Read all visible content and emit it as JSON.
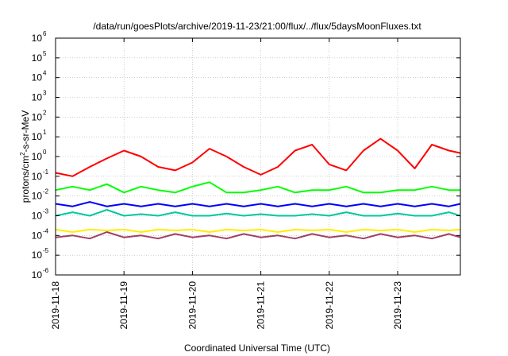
{
  "chart_data": {
    "type": "line",
    "title": "/data/run/goesPlots/archive/2019-11-23/21:00/flux/../flux/5daysMoonFluxes.txt",
    "xlabel": "Coordinated Universal Time (UTC)",
    "ylabel": "protons/cm²-s-sr-MeV",
    "x_range": [
      "2019-11-18",
      "2019-11-23 22:00"
    ],
    "y_scale": "log",
    "ylim": [
      1e-06,
      1000000.0
    ],
    "grid": true,
    "legend": "none",
    "x_ticks": [
      "2019-11-18",
      "2019-11-19",
      "2019-11-20",
      "2019-11-21",
      "2019-11-22",
      "2019-11-23"
    ],
    "y_ticks": [
      {
        "base": "10",
        "exp": "-6"
      },
      {
        "base": "10",
        "exp": "-5"
      },
      {
        "base": "10",
        "exp": "-4"
      },
      {
        "base": "10",
        "exp": "-3"
      },
      {
        "base": "10",
        "exp": "-2"
      },
      {
        "base": "10",
        "exp": "-1"
      },
      {
        "base": "10",
        "exp": "0"
      },
      {
        "base": "10",
        "exp": "1"
      },
      {
        "base": "10",
        "exp": "2"
      },
      {
        "base": "10",
        "exp": "3"
      },
      {
        "base": "10",
        "exp": "4"
      },
      {
        "base": "10",
        "exp": "5"
      },
      {
        "base": "10",
        "exp": "6"
      }
    ],
    "x_hours": [
      0,
      6,
      12,
      18,
      24,
      30,
      36,
      42,
      48,
      54,
      60,
      66,
      72,
      78,
      84,
      90,
      96,
      102,
      108,
      114,
      120,
      126,
      132,
      138,
      142
    ],
    "series": [
      {
        "color": "#ff0000",
        "values": [
          0.15,
          0.1,
          0.3,
          0.8,
          2.0,
          1.0,
          0.3,
          0.2,
          0.5,
          2.5,
          1.0,
          0.3,
          0.12,
          0.3,
          2.0,
          4.0,
          0.4,
          0.2,
          2.0,
          8.0,
          2.0,
          0.25,
          4.0,
          2.0,
          1.5
        ]
      },
      {
        "color": "#00ff00",
        "values": [
          0.02,
          0.03,
          0.02,
          0.04,
          0.015,
          0.03,
          0.02,
          0.015,
          0.03,
          0.05,
          0.015,
          0.015,
          0.02,
          0.03,
          0.015,
          0.02,
          0.02,
          0.03,
          0.015,
          0.015,
          0.02,
          0.02,
          0.03,
          0.02,
          0.02
        ]
      },
      {
        "color": "#0000ff",
        "values": [
          0.004,
          0.003,
          0.005,
          0.003,
          0.004,
          0.003,
          0.004,
          0.003,
          0.004,
          0.003,
          0.004,
          0.003,
          0.004,
          0.003,
          0.004,
          0.003,
          0.004,
          0.003,
          0.004,
          0.003,
          0.004,
          0.003,
          0.004,
          0.003,
          0.004
        ]
      },
      {
        "color": "#00c8a0",
        "values": [
          0.001,
          0.0015,
          0.001,
          0.002,
          0.001,
          0.0012,
          0.001,
          0.0015,
          0.001,
          0.001,
          0.0013,
          0.001,
          0.0012,
          0.001,
          0.001,
          0.0012,
          0.001,
          0.0015,
          0.001,
          0.001,
          0.0013,
          0.001,
          0.001,
          0.0015,
          0.001
        ]
      },
      {
        "color": "#ffee00",
        "values": [
          0.0002,
          0.00015,
          0.0002,
          0.00018,
          0.0002,
          0.00015,
          0.0002,
          0.00018,
          0.0002,
          0.00015,
          0.0002,
          0.00018,
          0.0002,
          0.00015,
          0.0002,
          0.00018,
          0.0002,
          0.00015,
          0.0002,
          0.00018,
          0.0002,
          0.00015,
          0.0002,
          0.00018,
          0.0002
        ]
      },
      {
        "color": "#a04060",
        "values": [
          8e-05,
          0.0001,
          7e-05,
          0.00015,
          8e-05,
          0.0001,
          7e-05,
          0.00012,
          8e-05,
          0.0001,
          7e-05,
          0.00012,
          8e-05,
          0.0001,
          7e-05,
          0.00012,
          8e-05,
          0.0001,
          7e-05,
          0.00012,
          8e-05,
          0.0001,
          7e-05,
          0.00012,
          8e-05
        ]
      }
    ]
  }
}
